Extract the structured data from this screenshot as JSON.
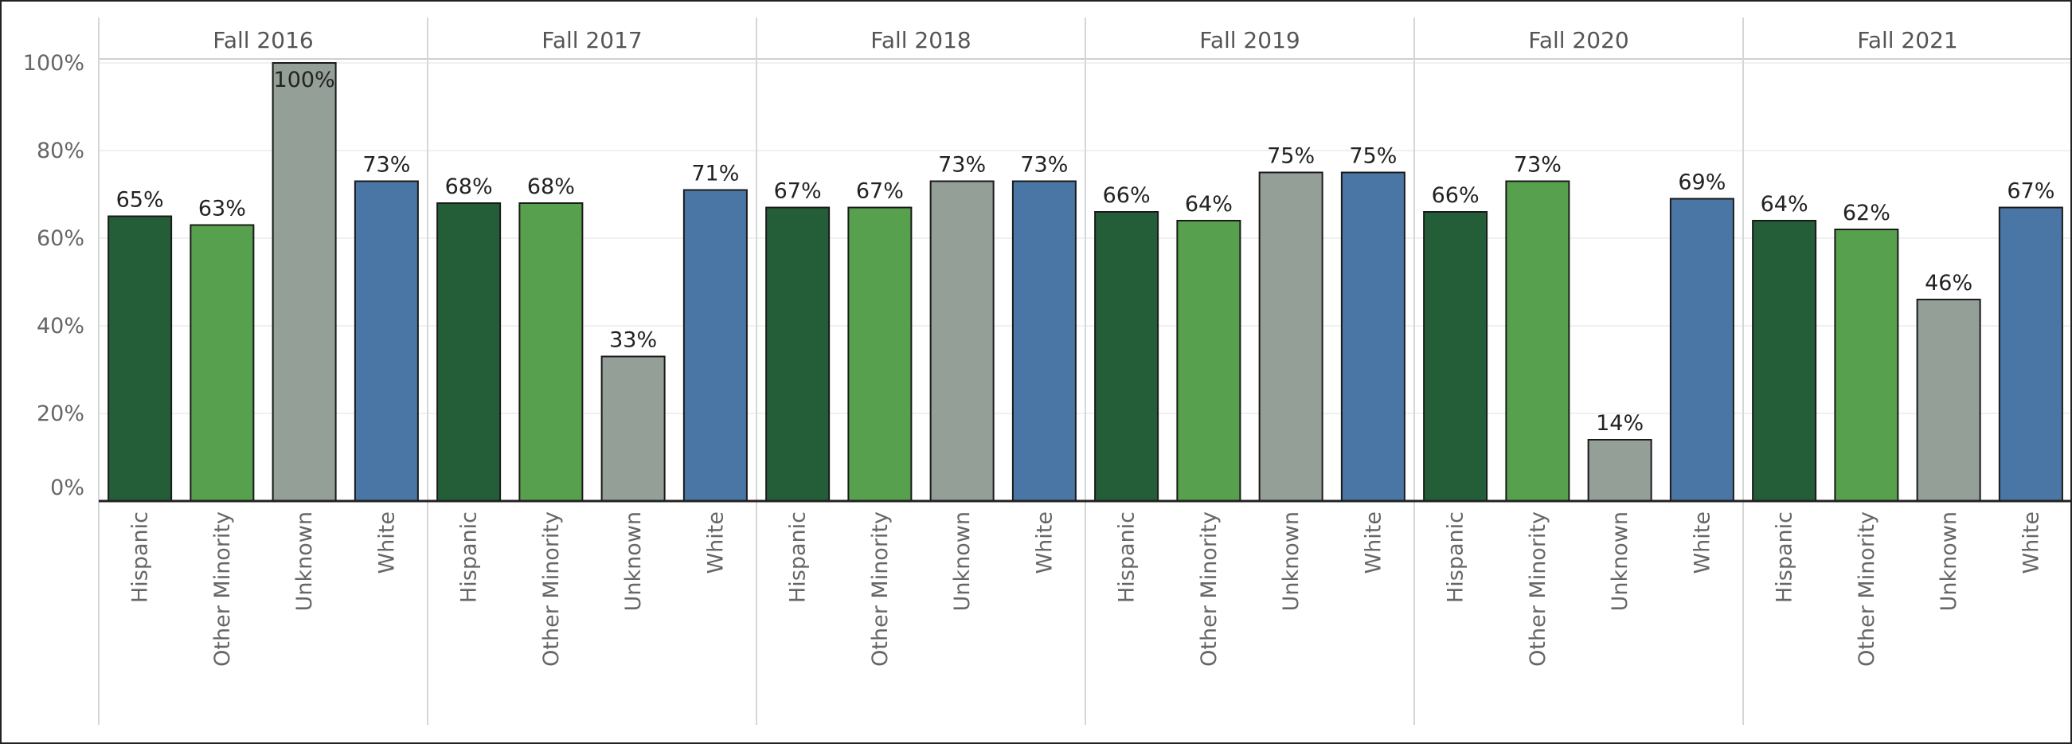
{
  "chart_data": {
    "type": "bar",
    "title": "",
    "xlabel": "",
    "ylabel": "",
    "ylim": [
      0,
      100
    ],
    "yticks": [
      "0%",
      "20%",
      "40%",
      "60%",
      "80%",
      "100%"
    ],
    "ytick_values": [
      0,
      20,
      40,
      60,
      80,
      100
    ],
    "grid": true,
    "categories": [
      "Hispanic",
      "Other Minority",
      "Unknown",
      "White"
    ],
    "colors": {
      "Hispanic": "#245e38",
      "Other Minority": "#57a14e",
      "Unknown": "#949f98",
      "White": "#4a76a6"
    },
    "panels": [
      {
        "label": "Fall 2016",
        "values": [
          65,
          63,
          100,
          73
        ],
        "labels": [
          "65%",
          "63%",
          "100%",
          "73%"
        ]
      },
      {
        "label": "Fall 2017",
        "values": [
          68,
          68,
          33,
          71
        ],
        "labels": [
          "68%",
          "68%",
          "33%",
          "71%"
        ]
      },
      {
        "label": "Fall 2018",
        "values": [
          67,
          67,
          73,
          73
        ],
        "labels": [
          "67%",
          "67%",
          "73%",
          "73%"
        ]
      },
      {
        "label": "Fall 2019",
        "values": [
          66,
          64,
          75,
          75
        ],
        "labels": [
          "66%",
          "64%",
          "75%",
          "75%"
        ]
      },
      {
        "label": "Fall 2020",
        "values": [
          66,
          73,
          14,
          69
        ],
        "labels": [
          "66%",
          "73%",
          "14%",
          "69%"
        ]
      },
      {
        "label": "Fall 2021",
        "values": [
          64,
          62,
          46,
          67
        ],
        "labels": [
          "64%",
          "62%",
          "46%",
          "67%"
        ]
      }
    ]
  }
}
